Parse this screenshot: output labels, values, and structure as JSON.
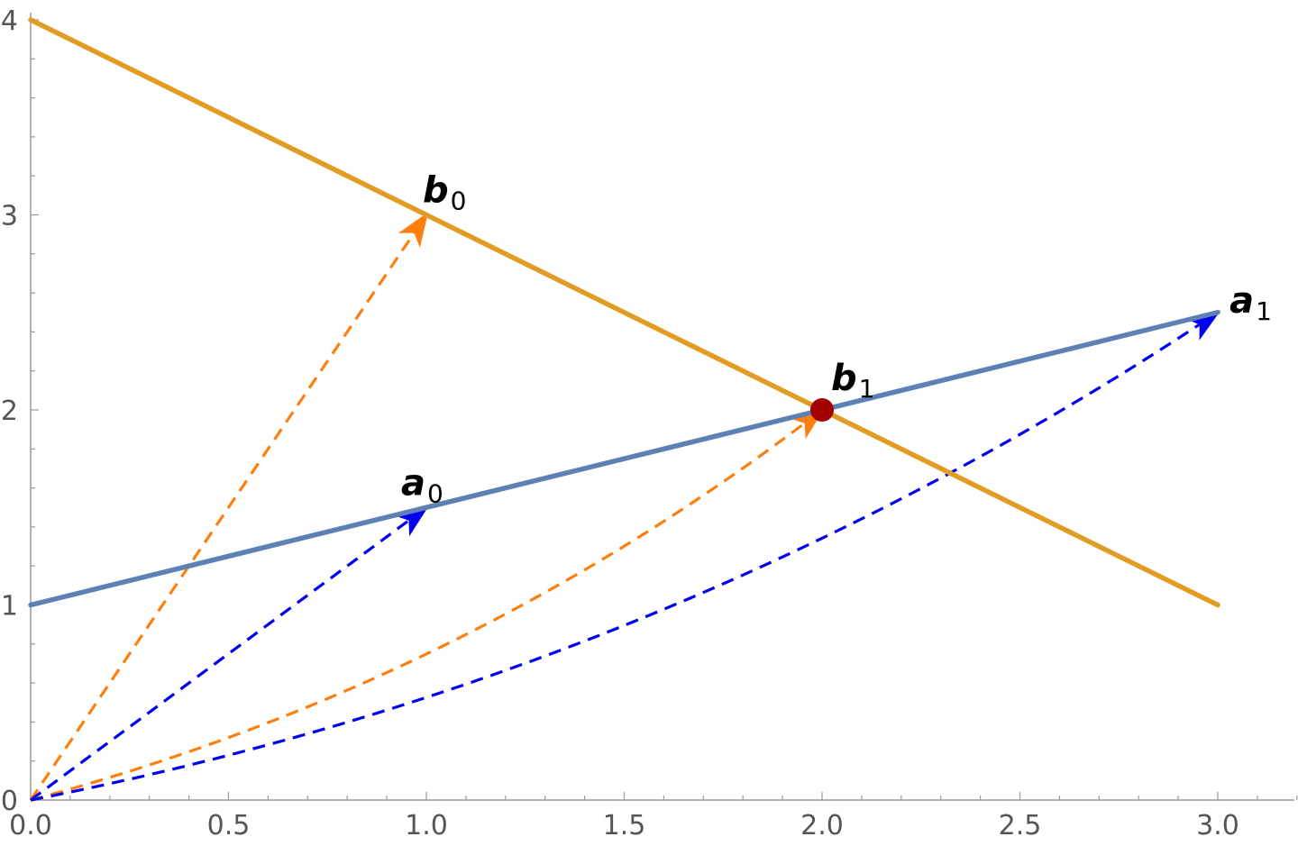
{
  "chart_data": {
    "type": "line",
    "title": "",
    "xlabel": "",
    "ylabel": "",
    "xlim": [
      0,
      3.2
    ],
    "ylim": [
      0,
      4
    ],
    "grid": false,
    "x_ticks": [
      {
        "value": 0.0,
        "label": "0.0"
      },
      {
        "value": 0.5,
        "label": "0.5"
      },
      {
        "value": 1.0,
        "label": "1.0"
      },
      {
        "value": 1.5,
        "label": "1.5"
      },
      {
        "value": 2.0,
        "label": "2.0"
      },
      {
        "value": 2.5,
        "label": "2.5"
      },
      {
        "value": 3.0,
        "label": "3.0"
      }
    ],
    "y_ticks": [
      {
        "value": 0,
        "label": "0"
      },
      {
        "value": 1,
        "label": "1"
      },
      {
        "value": 2,
        "label": "2"
      },
      {
        "value": 3,
        "label": "3"
      },
      {
        "value": 4,
        "label": "4"
      }
    ],
    "lines": [
      {
        "id": "a-line",
        "color": "#5e81b5",
        "points": [
          [
            0,
            1
          ],
          [
            3,
            2.5
          ]
        ]
      },
      {
        "id": "b-line",
        "color": "#e19c24",
        "points": [
          [
            0,
            4
          ],
          [
            3,
            1
          ]
        ]
      }
    ],
    "vectors": [
      {
        "id": "vector-b0",
        "color": "#ff7f0e",
        "from": [
          0,
          0
        ],
        "to": [
          1,
          3
        ],
        "bend": 0
      },
      {
        "id": "vector-a0",
        "color": "#0000ee",
        "from": [
          0,
          0
        ],
        "to": [
          1,
          1.5
        ],
        "bend": 0
      },
      {
        "id": "vector-b1",
        "color": "#ff7f0e",
        "from": [
          0,
          0
        ],
        "to": [
          2,
          2
        ],
        "bend": 0.1
      },
      {
        "id": "vector-a1",
        "color": "#0000ee",
        "from": [
          0,
          0
        ],
        "to": [
          3,
          2.5
        ],
        "bend": 0.1
      }
    ],
    "markers": [
      {
        "id": "intersection-point",
        "x": 2,
        "y": 2,
        "color": "#a30000"
      }
    ],
    "labels": [
      {
        "id": "label-b0",
        "text": "b",
        "sub": "0",
        "x": 1.0,
        "y": 3.0
      },
      {
        "id": "label-a0",
        "text": "a",
        "sub": "0",
        "x": 0.95,
        "y": 1.5
      },
      {
        "id": "label-b1",
        "text": "b",
        "sub": "1",
        "x": 2.05,
        "y": 2.0
      },
      {
        "id": "label-a1",
        "text": "a",
        "sub": "1",
        "x": 3.03,
        "y": 2.5
      }
    ]
  }
}
